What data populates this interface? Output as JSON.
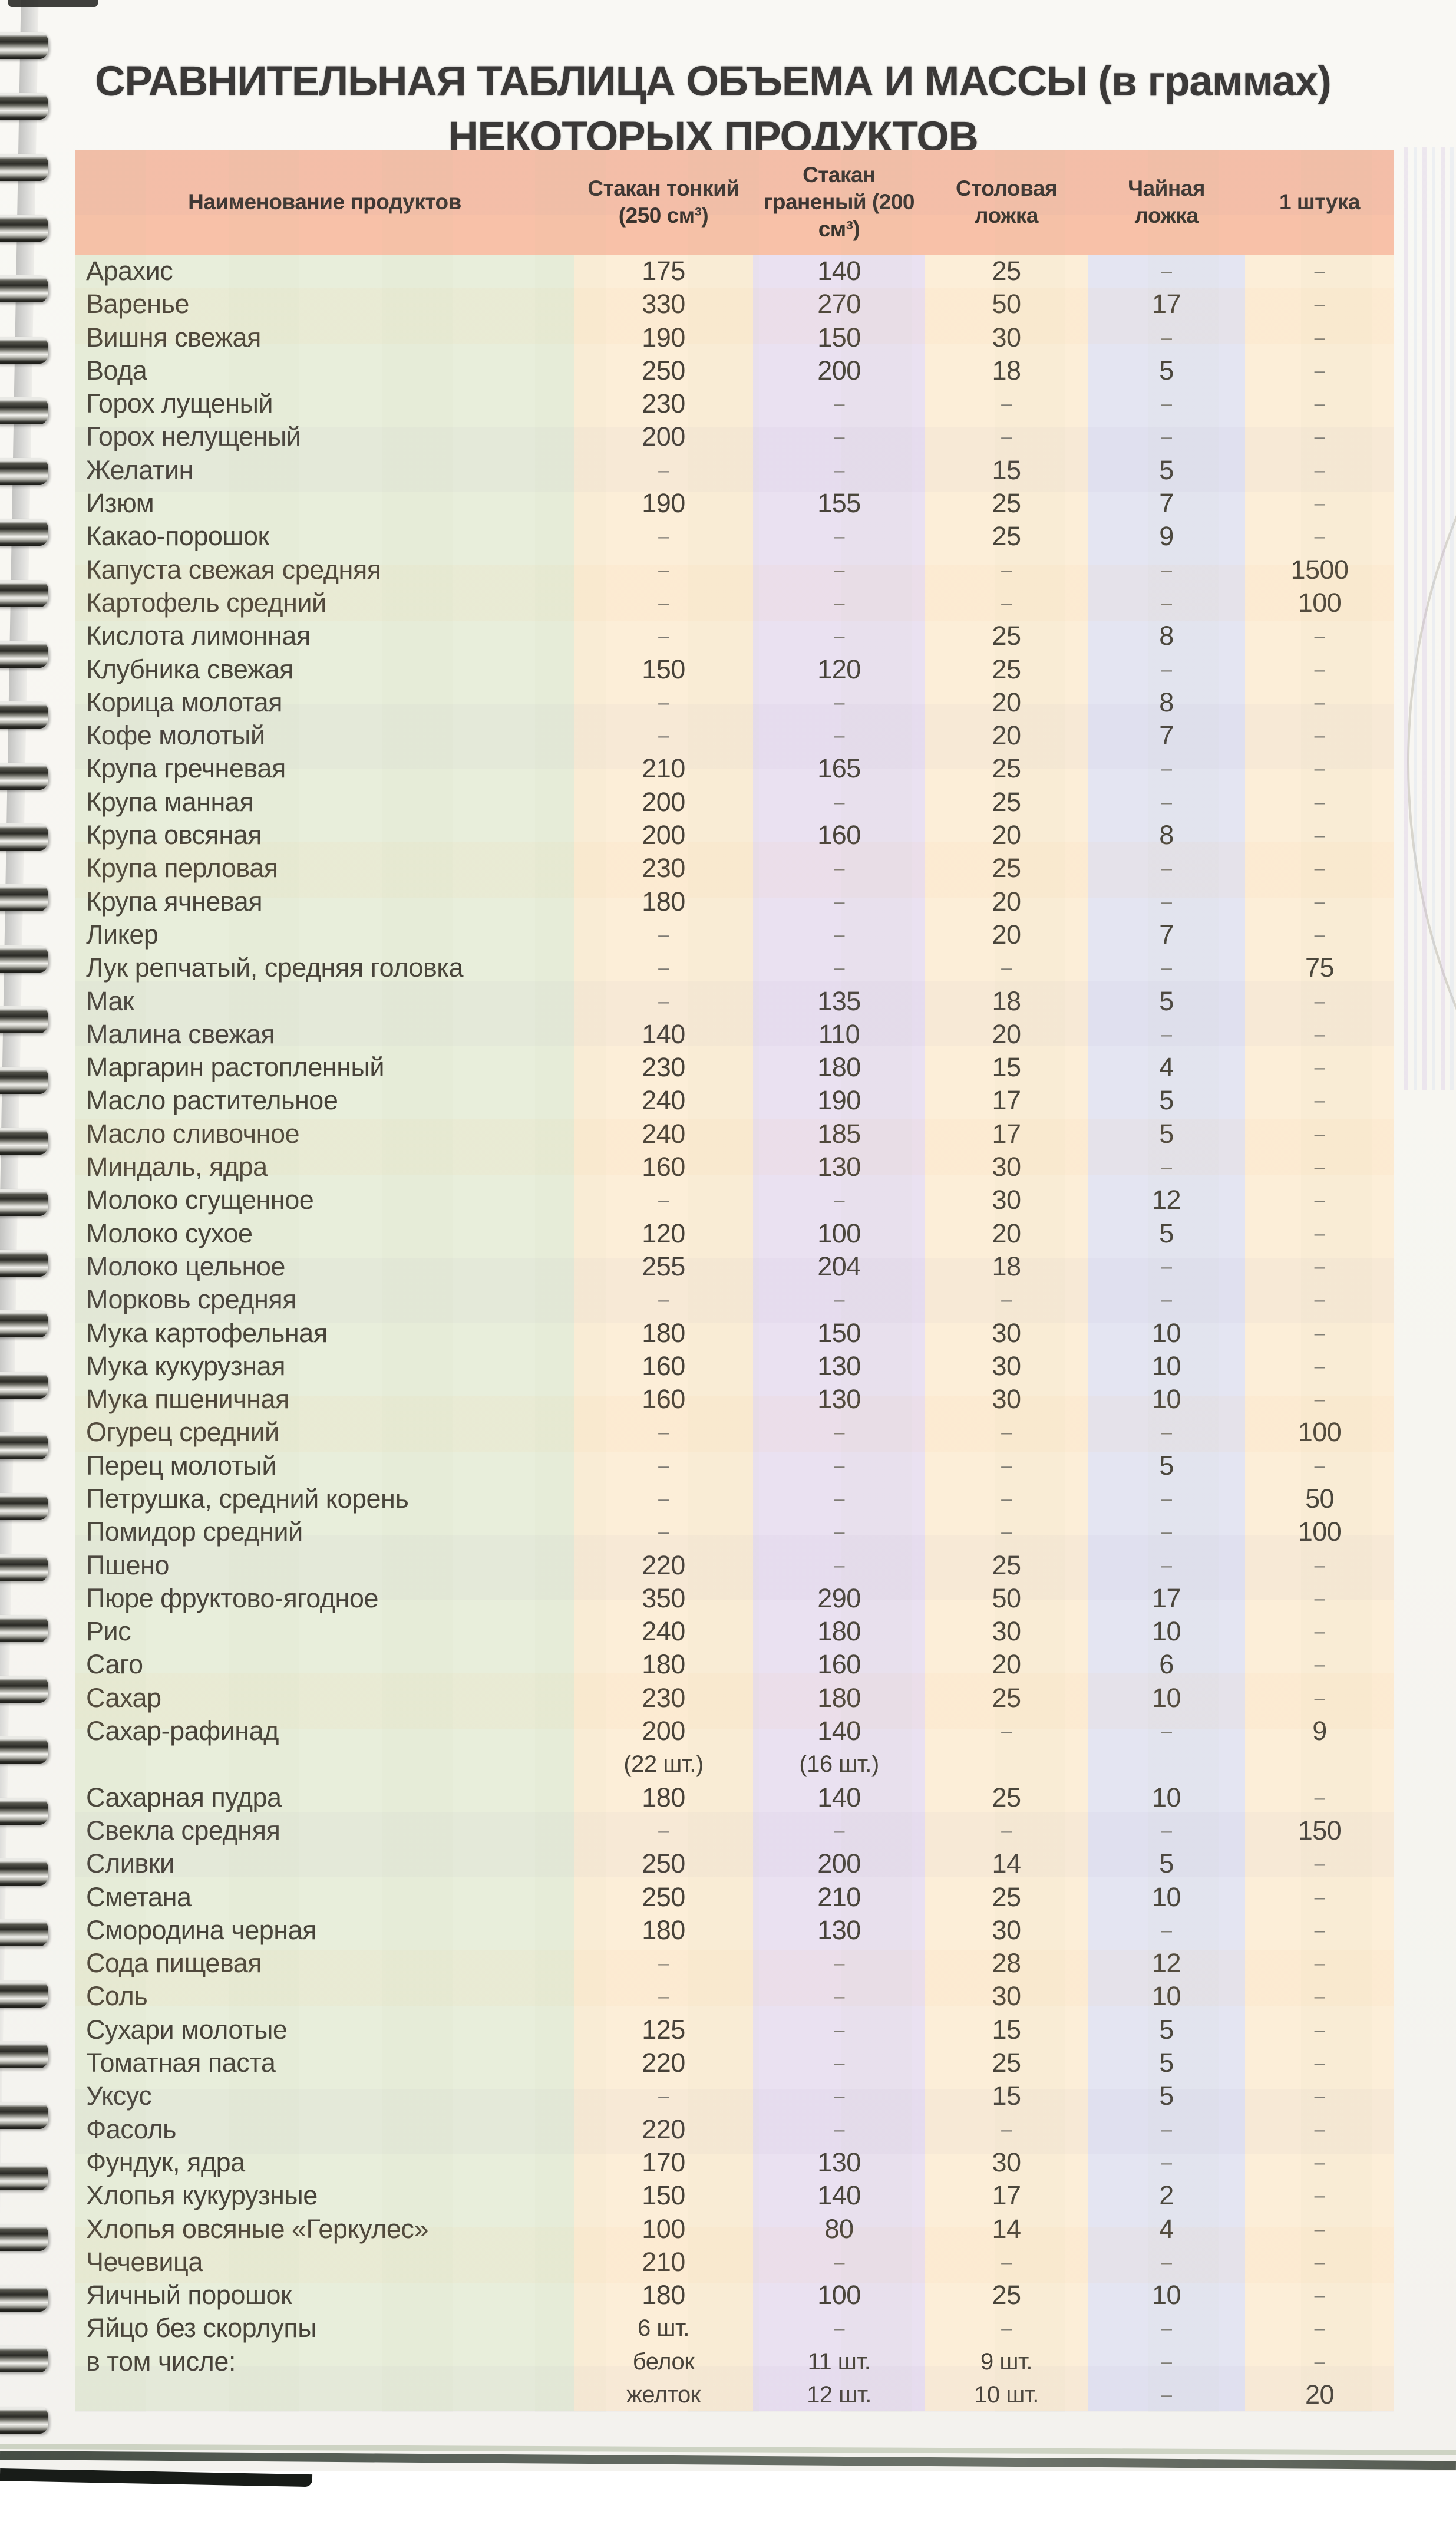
{
  "page": {
    "title_line1": "СРАВНИТЕЛЬНАЯ ТАБЛИЦА ОБЪЕМА И МАССЫ (в граммах)",
    "title_line2": "НЕКОТОРЫХ ПРОДУКТОВ"
  },
  "table": {
    "columns": [
      "Наименование продуктов",
      "Стакан тонкий (250 см³)",
      "Стакан граненый (200 см³)",
      "Столовая ложка",
      "Чайная ложка",
      "1 штука"
    ],
    "rows": [
      [
        "Арахис",
        "175",
        "140",
        "25",
        "–",
        "–"
      ],
      [
        "Варенье",
        "330",
        "270",
        "50",
        "17",
        "–"
      ],
      [
        "Вишня свежая",
        "190",
        "150",
        "30",
        "–",
        "–"
      ],
      [
        "Вода",
        "250",
        "200",
        "18",
        "5",
        "–"
      ],
      [
        "Горох лущеный",
        "230",
        "–",
        "–",
        "–",
        "–"
      ],
      [
        "Горох нелущеный",
        "200",
        "–",
        "–",
        "–",
        "–"
      ],
      [
        "Желатин",
        "–",
        "–",
        "15",
        "5",
        "–"
      ],
      [
        "Изюм",
        "190",
        "155",
        "25",
        "7",
        "–"
      ],
      [
        "Какао-порошок",
        "–",
        "–",
        "25",
        "9",
        "–"
      ],
      [
        "Капуста свежая средняя",
        "–",
        "–",
        "–",
        "–",
        "1500"
      ],
      [
        "Картофель средний",
        "–",
        "–",
        "–",
        "–",
        "100"
      ],
      [
        "Кислота лимонная",
        "–",
        "–",
        "25",
        "8",
        "–"
      ],
      [
        "Клубника свежая",
        "150",
        "120",
        "25",
        "–",
        "–"
      ],
      [
        "Корица молотая",
        "–",
        "–",
        "20",
        "8",
        "–"
      ],
      [
        "Кофе молотый",
        "–",
        "–",
        "20",
        "7",
        "–"
      ],
      [
        "Крупа гречневая",
        "210",
        "165",
        "25",
        "–",
        "–"
      ],
      [
        "Крупа манная",
        "200",
        "–",
        "25",
        "–",
        "–"
      ],
      [
        "Крупа овсяная",
        "200",
        "160",
        "20",
        "8",
        "–"
      ],
      [
        "Крупа перловая",
        "230",
        "–",
        "25",
        "–",
        "–"
      ],
      [
        "Крупа ячневая",
        "180",
        "–",
        "20",
        "–",
        "–"
      ],
      [
        "Ликер",
        "–",
        "–",
        "20",
        "7",
        "–"
      ],
      [
        "Лук репчатый, средняя головка",
        "–",
        "–",
        "–",
        "–",
        "75"
      ],
      [
        "Мак",
        "–",
        "135",
        "18",
        "5",
        "–"
      ],
      [
        "Малина свежая",
        "140",
        "110",
        "20",
        "–",
        "–"
      ],
      [
        "Маргарин растопленный",
        "230",
        "180",
        "15",
        "4",
        "–"
      ],
      [
        "Масло растительное",
        "240",
        "190",
        "17",
        "5",
        "–"
      ],
      [
        "Масло сливочное",
        "240",
        "185",
        "17",
        "5",
        "–"
      ],
      [
        "Миндаль, ядра",
        "160",
        "130",
        "30",
        "–",
        "–"
      ],
      [
        "Молоко сгущенное",
        "–",
        "–",
        "30",
        "12",
        "–"
      ],
      [
        "Молоко сухое",
        "120",
        "100",
        "20",
        "5",
        "–"
      ],
      [
        "Молоко цельное",
        "255",
        "204",
        "18",
        "–",
        "–"
      ],
      [
        "Морковь средняя",
        "–",
        "–",
        "–",
        "–",
        "–"
      ],
      [
        "Мука картофельная",
        "180",
        "150",
        "30",
        "10",
        "–"
      ],
      [
        "Мука кукурузная",
        "160",
        "130",
        "30",
        "10",
        "–"
      ],
      [
        "Мука пшеничная",
        "160",
        "130",
        "30",
        "10",
        "–"
      ],
      [
        "Огурец средний",
        "–",
        "–",
        "–",
        "–",
        "100"
      ],
      [
        "Перец молотый",
        "–",
        "–",
        "–",
        "5",
        "–"
      ],
      [
        "Петрушка, средний корень",
        "–",
        "–",
        "–",
        "–",
        "50"
      ],
      [
        "Помидор средний",
        "–",
        "–",
        "–",
        "–",
        "100"
      ],
      [
        "Пшено",
        "220",
        "–",
        "25",
        "–",
        "–"
      ],
      [
        "Пюре фруктово-ягодное",
        "350",
        "290",
        "50",
        "17",
        "–"
      ],
      [
        "Рис",
        "240",
        "180",
        "30",
        "10",
        "–"
      ],
      [
        "Саго",
        "180",
        "160",
        "20",
        "6",
        "–"
      ],
      [
        "Сахар",
        "230",
        "180",
        "25",
        "10",
        "–"
      ],
      [
        "Сахар-рафинад",
        "200",
        "140",
        "–",
        "–",
        "9"
      ],
      [
        "",
        "(22 шт.)",
        "(16 шт.)",
        "",
        "",
        ""
      ],
      [
        "Сахарная пудра",
        "180",
        "140",
        "25",
        "10",
        "–"
      ],
      [
        "Свекла средняя",
        "–",
        "–",
        "–",
        "–",
        "150"
      ],
      [
        "Сливки",
        "250",
        "200",
        "14",
        "5",
        "–"
      ],
      [
        "Сметана",
        "250",
        "210",
        "25",
        "10",
        "–"
      ],
      [
        "Смородина черная",
        "180",
        "130",
        "30",
        "–",
        "–"
      ],
      [
        "Сода пищевая",
        "–",
        "–",
        "28",
        "12",
        "–"
      ],
      [
        "Соль",
        "–",
        "–",
        "30",
        "10",
        "–"
      ],
      [
        "Сухари молотые",
        "125",
        "–",
        "15",
        "5",
        "–"
      ],
      [
        "Томатная паста",
        "220",
        "–",
        "25",
        "5",
        "–"
      ],
      [
        "Уксус",
        "–",
        "–",
        "15",
        "5",
        "–"
      ],
      [
        "Фасоль",
        "220",
        "–",
        "–",
        "–",
        "–"
      ],
      [
        "Фундук, ядра",
        "170",
        "130",
        "30",
        "–",
        "–"
      ],
      [
        "Хлопья кукурузные",
        "150",
        "140",
        "17",
        "2",
        "–"
      ],
      [
        "Хлопья овсяные «Геркулес»",
        "100",
        "80",
        "14",
        "4",
        "–"
      ],
      [
        "Чечевица",
        "210",
        "–",
        "–",
        "–",
        "–"
      ],
      [
        "Яичный порошок",
        "180",
        "100",
        "25",
        "10",
        "–"
      ],
      [
        "Яйцо без скорлупы",
        "6 шт.",
        "–",
        "–",
        "–",
        "–"
      ],
      [
        "в том числе:",
        "белок",
        "11 шт.",
        "9 шт.",
        "–",
        "–"
      ],
      [
        "",
        "желток",
        "12 шт.",
        "10 шт.",
        "–",
        "20"
      ]
    ]
  },
  "colors": {
    "header_bg": "#f8c1a8",
    "col_name_bg": "#e8eedb",
    "col_peach_bg": "#fceed8",
    "col_lavender_bg": "#eae1f1",
    "col_blue_bg": "#e4e5f2",
    "title_ink": "#3b3938",
    "body_ink": "#474239"
  }
}
